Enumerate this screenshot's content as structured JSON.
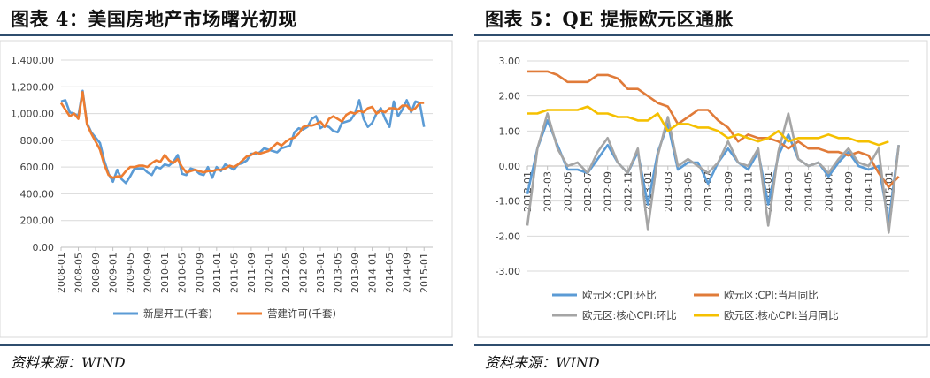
{
  "left": {
    "title": "图表 4：美国房地产市场曙光初现",
    "source": "资料来源：WIND"
  },
  "right": {
    "title": "图表 5：QE 提振欧元区通胀",
    "source": "资料来源：WIND"
  },
  "chart_data": [
    {
      "type": "line",
      "title": "",
      "xlabel": "",
      "ylabel": "",
      "ylim": [
        0,
        1400
      ],
      "yticks": [
        "0.00",
        "200.00",
        "400.00",
        "600.00",
        "800.00",
        "1,000.00",
        "1,200.00",
        "1,400.00"
      ],
      "x_tick_labels": [
        "2008-01",
        "2008-05",
        "2008-09",
        "2009-01",
        "2009-05",
        "2009-09",
        "2010-01",
        "2010-05",
        "2010-09",
        "2011-01",
        "2011-05",
        "2011-09",
        "2012-01",
        "2012-05",
        "2012-09",
        "2013-01",
        "2013-05",
        "2013-09",
        "2014-01",
        "2014-05",
        "2014-09",
        "2015-01"
      ],
      "x_start": "2008-01",
      "x_end": "2015-03",
      "grid": true,
      "legend_position": "bottom",
      "series": [
        {
          "name": "新屋开工(千套)",
          "color": "#5b9bd5",
          "values": [
            1090,
            1100,
            1010,
            1000,
            980,
            1170,
            930,
            860,
            820,
            780,
            650,
            550,
            490,
            580,
            510,
            480,
            530,
            590,
            590,
            590,
            560,
            540,
            600,
            590,
            620,
            610,
            640,
            690,
            550,
            540,
            590,
            580,
            550,
            540,
            600,
            520,
            600,
            570,
            620,
            600,
            580,
            620,
            630,
            650,
            700,
            700,
            710,
            740,
            730,
            720,
            710,
            740,
            750,
            760,
            860,
            890,
            880,
            900,
            960,
            980,
            890,
            910,
            900,
            870,
            860,
            930,
            940,
            950,
            1000,
            1100,
            960,
            900,
            930,
            1000,
            1040,
            960,
            900,
            1090,
            980,
            1030,
            1100,
            1010,
            1090,
            1080,
            900
          ]
        },
        {
          "name": "营建许可(千套)",
          "color": "#ed7d31",
          "values": [
            1080,
            1030,
            980,
            1000,
            960,
            1160,
            920,
            850,
            790,
            730,
            620,
            540,
            520,
            530,
            530,
            570,
            600,
            600,
            610,
            610,
            600,
            630,
            650,
            640,
            690,
            650,
            630,
            660,
            600,
            560,
            570,
            580,
            570,
            560,
            570,
            570,
            580,
            580,
            590,
            610,
            600,
            620,
            650,
            680,
            690,
            710,
            700,
            710,
            720,
            750,
            780,
            760,
            790,
            810,
            820,
            850,
            900,
            910,
            910,
            920,
            940,
            900,
            960,
            980,
            960,
            940,
            990,
            1010,
            1000,
            1020,
            1010,
            1040,
            1050,
            1000,
            1020,
            1010,
            1040,
            1040,
            1030,
            1060,
            1060,
            1020,
            1040,
            1080,
            1080
          ]
        }
      ]
    },
    {
      "type": "line",
      "title": "",
      "xlabel": "",
      "ylabel": "",
      "ylim": [
        -3,
        3
      ],
      "yticks": [
        "-3.00",
        "-2.00",
        "-1.00",
        "0.00",
        "1.00",
        "2.00",
        "3.00"
      ],
      "x_tick_labels": [
        "2012-01",
        "2012-03",
        "2012-05",
        "2012-07",
        "2012-09",
        "2012-11",
        "2013-01",
        "2013-03",
        "2013-05",
        "2013-07",
        "2013-09",
        "2013-11",
        "2014-01",
        "2014-03",
        "2014-05",
        "2014-07",
        "2014-09",
        "2014-11",
        "2015-01"
      ],
      "x_start": "2012-01",
      "x_end": "2015-03",
      "grid": true,
      "legend_position": "bottom",
      "series": [
        {
          "name": "欧元区:CPI:环比",
          "color": "#5b9bd5",
          "values": [
            -0.8,
            0.5,
            1.3,
            0.6,
            -0.1,
            -0.1,
            -0.2,
            0.2,
            0.6,
            0.1,
            -0.2,
            0.4,
            -1.1,
            0.4,
            1.2,
            -0.1,
            0.1,
            0.1,
            -0.5,
            0.1,
            0.5,
            0.1,
            -0.1,
            0.4,
            -1.1,
            0.3,
            0.9,
            0.2,
            0.0,
            0.1,
            -0.3,
            0.1,
            0.4,
            0.0,
            -0.1,
            0.0,
            -1.6,
            0.6
          ]
        },
        {
          "name": "欧元区:CPI:当月同比",
          "color": "#e07b39",
          "values": [
            2.7,
            2.7,
            2.7,
            2.6,
            2.4,
            2.4,
            2.4,
            2.6,
            2.6,
            2.5,
            2.2,
            2.2,
            2.0,
            1.8,
            1.7,
            1.2,
            1.4,
            1.6,
            1.6,
            1.3,
            1.1,
            0.7,
            0.9,
            0.8,
            0.8,
            0.7,
            0.5,
            0.7,
            0.5,
            0.5,
            0.4,
            0.4,
            0.3,
            0.4,
            0.3,
            -0.2,
            -0.6,
            -0.3
          ]
        },
        {
          "name": "欧元区:核心CPI:环比",
          "color": "#a5a5a5",
          "values": [
            -1.7,
            0.5,
            1.5,
            0.5,
            0.0,
            0.1,
            -0.2,
            0.4,
            0.8,
            0.1,
            -0.2,
            0.5,
            -1.8,
            0.3,
            1.4,
            0.0,
            0.2,
            0.0,
            -0.2,
            0.1,
            0.7,
            0.1,
            0.0,
            0.5,
            -1.7,
            0.4,
            1.5,
            0.2,
            0.0,
            0.1,
            -0.2,
            0.2,
            0.5,
            0.1,
            0.0,
            0.5,
            -1.9,
            0.6
          ]
        },
        {
          "name": "欧元区:核心CPI:当月同比",
          "color": "#f5c000",
          "values": [
            1.5,
            1.5,
            1.6,
            1.6,
            1.6,
            1.6,
            1.7,
            1.5,
            1.5,
            1.4,
            1.4,
            1.3,
            1.3,
            1.5,
            1.0,
            1.2,
            1.2,
            1.1,
            1.1,
            1.0,
            0.8,
            0.9,
            0.8,
            0.7,
            0.8,
            1.0,
            0.7,
            0.8,
            0.8,
            0.8,
            0.9,
            0.8,
            0.8,
            0.7,
            0.7,
            0.6,
            0.7
          ]
        }
      ]
    }
  ]
}
